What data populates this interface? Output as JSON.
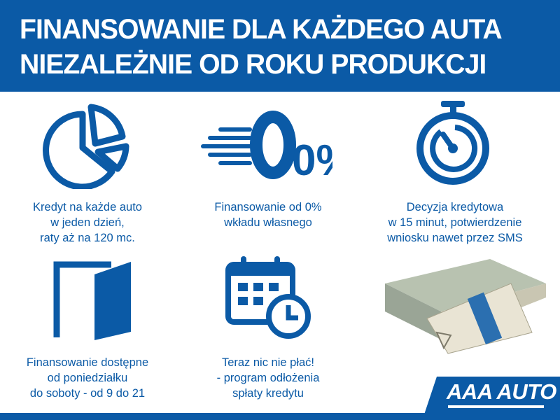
{
  "header": {
    "line1": "FINANSOWANIE DLA KAŻDEGO AUTA",
    "line2": "NIEZALEŻNIE OD ROKU PRODUKCJI"
  },
  "features": [
    {
      "icon": "pie-chart-icon",
      "lines": [
        "Kredyt na każde auto",
        "w jeden dzień,",
        "raty aż na 120 mc."
      ]
    },
    {
      "icon": "zero-percent-icon",
      "icon_text": "0%",
      "lines": [
        "Finansowanie od 0%",
        "wkładu własnego"
      ]
    },
    {
      "icon": "stopwatch-icon",
      "lines": [
        "Decyzja kredytowa",
        "w 15 minut, potwierdzenie",
        "wniosku nawet przez SMS"
      ]
    },
    {
      "icon": "open-door-icon",
      "lines": [
        "Finansowanie dostępne",
        "od poniedziałku",
        "do soboty - od 9 do 21"
      ]
    },
    {
      "icon": "calendar-clock-icon",
      "lines": [
        "Teraz nic nie płać!",
        "- program odłożenia",
        "spłaty kredytu"
      ]
    }
  ],
  "logo": {
    "text": "AAA AUTO"
  },
  "colors": {
    "brand_blue": "#0b5aa6",
    "white": "#ffffff"
  }
}
